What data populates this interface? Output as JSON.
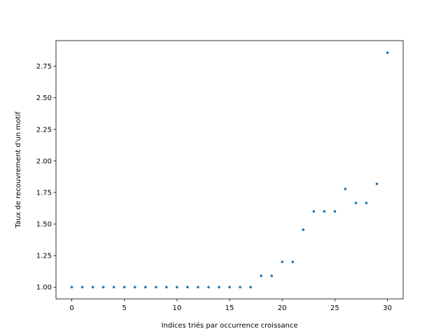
{
  "chart_data": {
    "type": "scatter",
    "title": "",
    "xlabel": "Indices triés par occurrence croissance",
    "ylabel": "Taux de recouvrement d'un motif",
    "xlim": [
      -1.5,
      31.5
    ],
    "ylim": [
      0.907,
      2.953
    ],
    "x_ticks": [
      0,
      5,
      10,
      15,
      20,
      25,
      30
    ],
    "x_tick_labels": [
      "0",
      "5",
      "10",
      "15",
      "20",
      "25",
      "30"
    ],
    "y_ticks": [
      1.0,
      1.25,
      1.5,
      1.75,
      2.0,
      2.25,
      2.5,
      2.75
    ],
    "y_tick_labels": [
      "1.00",
      "1.25",
      "1.50",
      "1.75",
      "2.00",
      "2.25",
      "2.50",
      "2.75"
    ],
    "grid": false,
    "legend": "none",
    "marker_color": "#1f77b4",
    "series": [
      {
        "x": [
          0,
          1,
          2,
          3,
          4,
          5,
          6,
          7,
          8,
          9,
          10,
          11,
          12,
          13,
          14,
          15,
          16,
          17,
          18,
          19,
          20,
          21,
          22,
          23,
          24,
          25,
          26,
          27,
          28,
          29,
          30
        ],
        "y": [
          1.0,
          1.0,
          1.0,
          1.0,
          1.0,
          1.0,
          1.0,
          1.0,
          1.0,
          1.0,
          1.0,
          1.0,
          1.0,
          1.0,
          1.0,
          1.0,
          1.0,
          1.0,
          1.09,
          1.09,
          1.2,
          1.2,
          1.455,
          1.6,
          1.6,
          1.6,
          1.778,
          1.667,
          1.667,
          1.818,
          2.857
        ]
      }
    ]
  }
}
